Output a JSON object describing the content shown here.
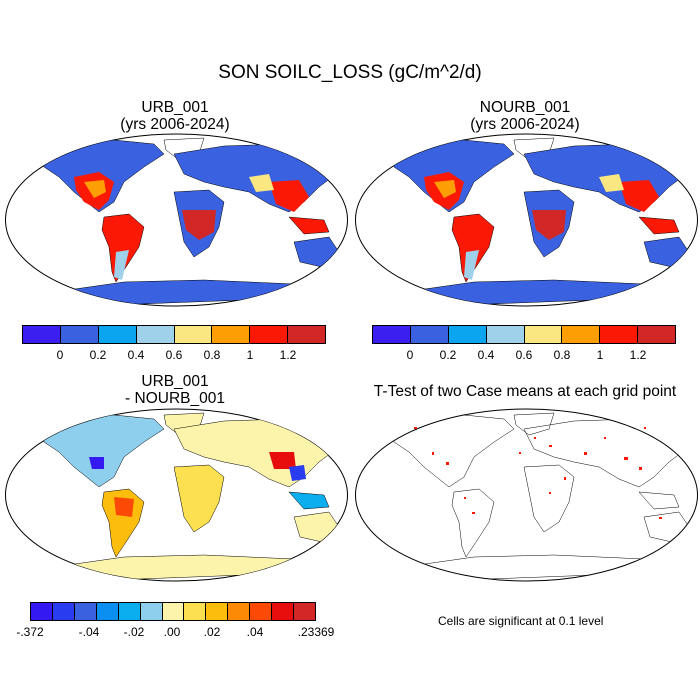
{
  "title": "SON SOILC_LOSS (gC/m^2/d)",
  "panels": [
    {
      "title": "URB_001",
      "subtitle": "(yrs 2006-2024)"
    },
    {
      "title": "NOURB_001",
      "subtitle": "(yrs 2006-2024)"
    },
    {
      "title": "URB_001",
      "subtitle": "- NOURB_001"
    },
    {
      "title": "T-Test of two Case means at each grid point",
      "subtitle": ""
    }
  ],
  "colorbar_main": {
    "colors": [
      "#3b1ef0",
      "#3a62e0",
      "#0aa5ee",
      "#9fd1ea",
      "#fbe781",
      "#fd9e05",
      "#fb1906",
      "#d22727"
    ],
    "labels": [
      "0",
      "0.2",
      "0.4",
      "0.6",
      "0.8",
      "1",
      "1.2"
    ]
  },
  "colorbar_diff": {
    "colors": [
      "#3419f0",
      "#2a3cf0",
      "#3a62e0",
      "#0a8ff0",
      "#0aaeee",
      "#8ecfee",
      "#fdf4ac",
      "#fde050",
      "#fdbd0c",
      "#fd8a05",
      "#fb4a06",
      "#e80d0d",
      "#d22727"
    ],
    "labels": [
      "-.372",
      "-.04",
      "-.02",
      ".00",
      ".02",
      ".04",
      ".23369"
    ]
  },
  "significance_note": "Cells are significant at 0.1 level"
}
